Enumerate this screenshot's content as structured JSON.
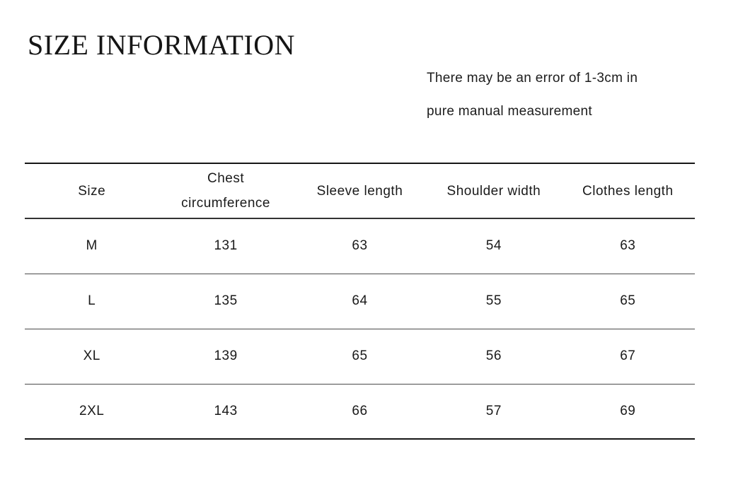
{
  "page": {
    "title": "SIZE INFORMATION"
  },
  "note": {
    "line1": "There may be an error of 1-3cm in",
    "line2": "pure manual measurement"
  },
  "colors": {
    "background": "#ffffff",
    "text": "#1a1a1a",
    "table_border": "#161616",
    "row_separator": "#4a4a4a"
  },
  "chart_data": {
    "type": "table",
    "title": "SIZE INFORMATION",
    "annotation": "There may be an error of 1-3cm in pure manual measurement",
    "columns": [
      "Size",
      "Chest circumference",
      "Sleeve length",
      "Shoulder width",
      "Clothes length"
    ],
    "rows": [
      [
        "M",
        "131",
        "63",
        "54",
        "63"
      ],
      [
        "L",
        "135",
        "64",
        "55",
        "65"
      ],
      [
        "XL",
        "139",
        "65",
        "56",
        "67"
      ],
      [
        "2XL",
        "143",
        "66",
        "57",
        "69"
      ]
    ]
  }
}
